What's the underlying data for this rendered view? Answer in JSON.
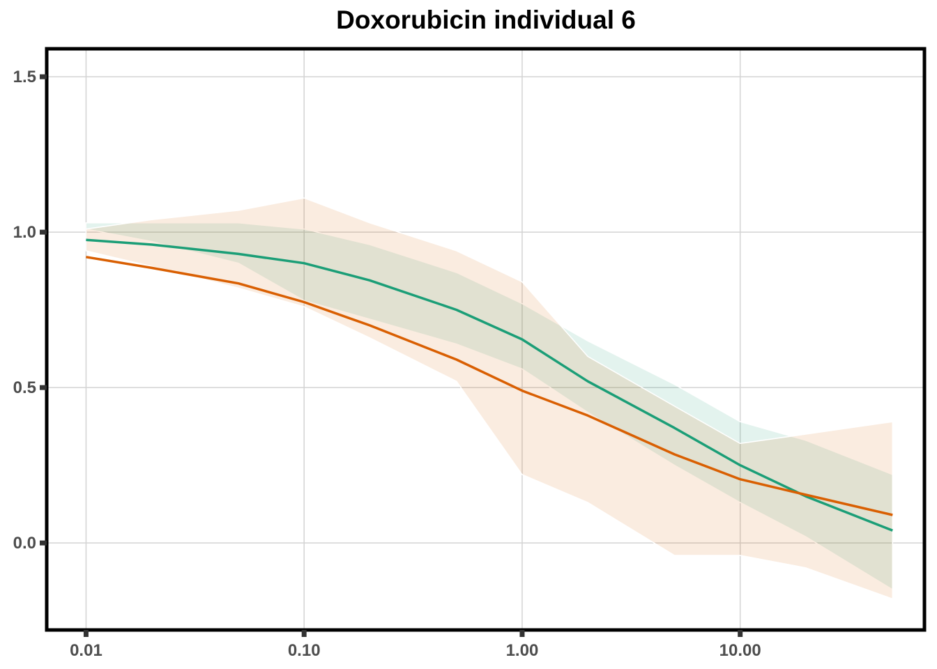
{
  "chart_data": {
    "type": "line",
    "title": "Doxorubicin individual 6",
    "xlabel": "",
    "ylabel": "",
    "x_scale": "log10",
    "x_ticks": [
      0.01,
      0.1,
      1,
      10
    ],
    "x_tick_labels": [
      "0.01",
      "0.10",
      "1.00",
      "10.00"
    ],
    "y_ticks": [
      0,
      0.5,
      1,
      1.5
    ],
    "y_tick_labels": [
      "0.0",
      "0.5",
      "1.0",
      "1.5"
    ],
    "xlim": [
      0.0066,
      70
    ],
    "ylim": [
      -0.28,
      1.59
    ],
    "grid": true,
    "legend": "none",
    "series": [
      {
        "color": "#1b9e77",
        "x": [
          0.01,
          0.02,
          0.05,
          0.1,
          0.2,
          0.5,
          1,
          2,
          5,
          10,
          20,
          50
        ],
        "y": [
          0.975,
          0.96,
          0.93,
          0.9,
          0.845,
          0.75,
          0.655,
          0.52,
          0.37,
          0.25,
          0.15,
          0.04
        ],
        "band_lower": [
          1.01,
          0.97,
          0.9,
          0.78,
          0.72,
          0.64,
          0.56,
          0.42,
          0.25,
          0.13,
          0.02,
          -0.15
        ],
        "band_upper": [
          1.03,
          1.03,
          1.03,
          1.01,
          0.96,
          0.87,
          0.77,
          0.65,
          0.51,
          0.39,
          0.33,
          0.22
        ]
      },
      {
        "color": "#d95f02",
        "x": [
          0.01,
          0.02,
          0.05,
          0.1,
          0.2,
          0.5,
          1,
          2,
          5,
          10,
          20,
          50
        ],
        "y": [
          0.92,
          0.885,
          0.835,
          0.775,
          0.7,
          0.59,
          0.49,
          0.41,
          0.285,
          0.205,
          0.155,
          0.09
        ],
        "band_lower": [
          0.94,
          0.89,
          0.82,
          0.76,
          0.66,
          0.52,
          0.22,
          0.13,
          -0.04,
          -0.04,
          -0.08,
          -0.18
        ],
        "band_upper": [
          1.01,
          1.04,
          1.07,
          1.11,
          1.03,
          0.94,
          0.84,
          0.6,
          0.44,
          0.32,
          0.35,
          0.39
        ]
      }
    ]
  }
}
